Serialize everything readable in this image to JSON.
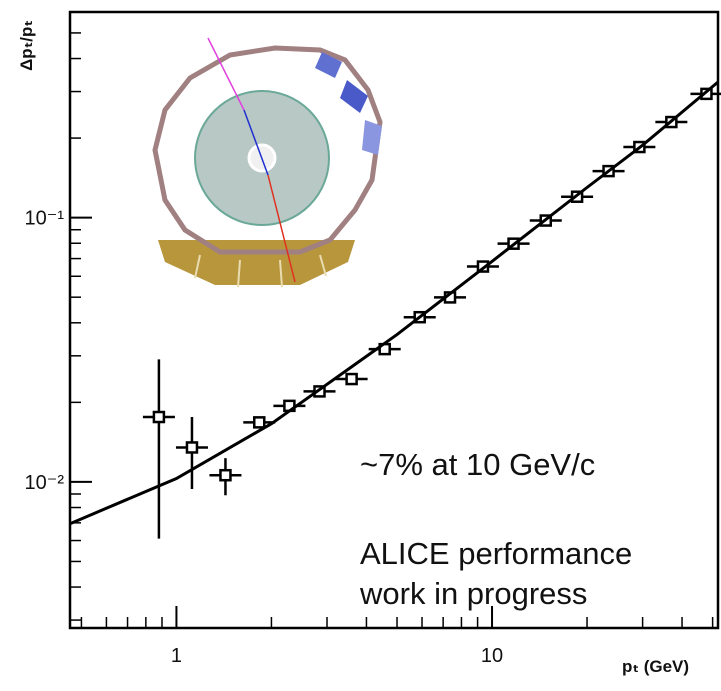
{
  "chart_data": {
    "type": "scatter",
    "xlabel": "pₜ (GeV)",
    "ylabel": "Δpₜ/pₜ",
    "xlog": true,
    "ylog": true,
    "xlim": [
      0.46,
      52
    ],
    "ylim": [
      0.0028,
      0.6
    ],
    "xticks": [
      1,
      10
    ],
    "xticks_minor": [
      0.5,
      0.6,
      0.7,
      0.8,
      0.9,
      2,
      3,
      4,
      5,
      6,
      7,
      8,
      9,
      20,
      30,
      40,
      50
    ],
    "yticks": [
      {
        "value": 0.01,
        "label": "10⁻²"
      },
      {
        "value": 0.1,
        "label": "10⁻¹"
      }
    ],
    "yticks_minor": [
      0.003,
      0.004,
      0.005,
      0.006,
      0.007,
      0.008,
      0.009,
      0.02,
      0.03,
      0.04,
      0.05,
      0.06,
      0.07,
      0.08,
      0.09,
      0.2,
      0.3,
      0.4,
      0.5
    ],
    "annotations": [
      "~7% at 10 GeV/c",
      "ALICE performance",
      "work in progress"
    ],
    "series": [
      {
        "color": "#000000",
        "marker": "open-square",
        "x": [
          0.88,
          1.12,
          1.43,
          1.83,
          2.28,
          2.84,
          3.59,
          4.57,
          5.9,
          7.36,
          9.36,
          11.7,
          14.8,
          18.6,
          23.4,
          29.3,
          37,
          47.8
        ],
        "values": [
          0.0176,
          0.0135,
          0.0106,
          0.0168,
          0.0194,
          0.022,
          0.0245,
          0.0318,
          0.042,
          0.0499,
          0.0653,
          0.0797,
          0.0975,
          0.12,
          0.15,
          0.185,
          0.23,
          0.294
        ],
        "y_err": [
          0.0115,
          0.0041,
          0.0017,
          null,
          null,
          null,
          null,
          null,
          null,
          null,
          null,
          null,
          null,
          null,
          null,
          null,
          null,
          null
        ]
      },
      {
        "color": "#000000",
        "marker": "line",
        "x": [
          0.46,
          1,
          2,
          3,
          5,
          10,
          20,
          30,
          52
        ],
        "values": [
          0.00695,
          0.0103,
          0.0166,
          0.0234,
          0.0361,
          0.0683,
          0.13,
          0.188,
          0.326
        ]
      }
    ]
  }
}
